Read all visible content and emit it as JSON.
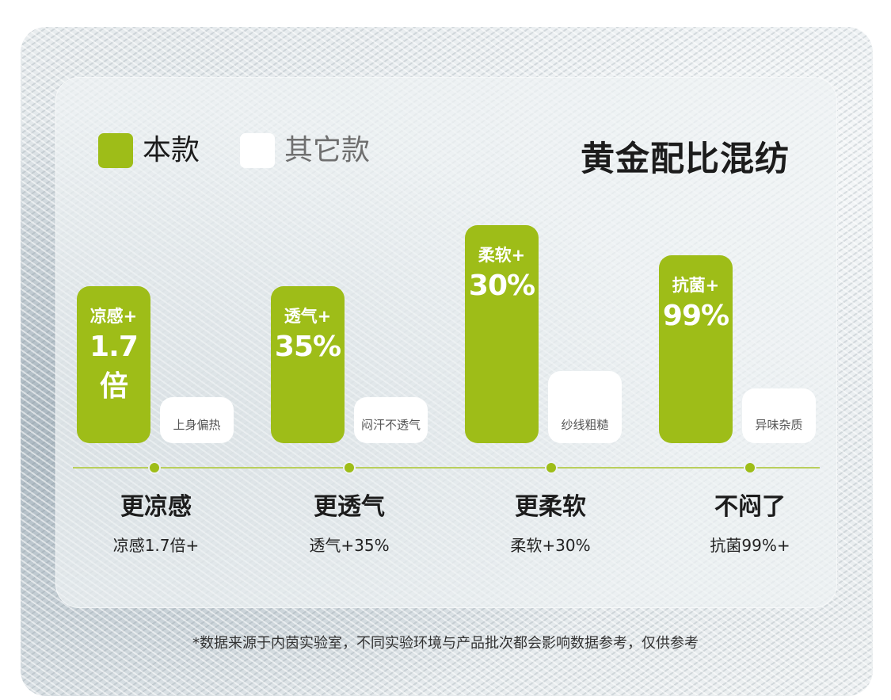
{
  "legend": [
    {
      "label": "本款",
      "color": "#9ebd18"
    },
    {
      "label": "其它款",
      "color": "#ffffff"
    }
  ],
  "title": "黄金配比混纺",
  "chart_data": {
    "type": "bar",
    "title": "黄金配比混纺",
    "categories": [
      "更凉感",
      "更透气",
      "更柔软",
      "不闷了"
    ],
    "category_descriptions": [
      "凉感1.7倍+",
      "透气+35%",
      "柔软+30%",
      "抗菌99%+"
    ],
    "series": [
      {
        "name": "本款",
        "bar_labels": [
          {
            "metric": "凉感+",
            "value": "1.7倍"
          },
          {
            "metric": "透气+",
            "value": "35%"
          },
          {
            "metric": "柔软+",
            "value": "30%"
          },
          {
            "metric": "抗菌+",
            "value": "99%"
          }
        ],
        "relative_heights": [
          0.72,
          0.72,
          1.0,
          0.86
        ]
      },
      {
        "name": "其它款",
        "bar_labels": [
          "上身偏热",
          "闷汗不透气",
          "纱线粗糙",
          "异味杂质"
        ],
        "relative_heights": [
          0.21,
          0.21,
          0.33,
          0.25
        ]
      }
    ],
    "grid": false,
    "legend_position": "top-left"
  },
  "footnote": "*数据来源于内茵实验室，不同实验环境与产品批次都会影响数据参考，仅供参考"
}
